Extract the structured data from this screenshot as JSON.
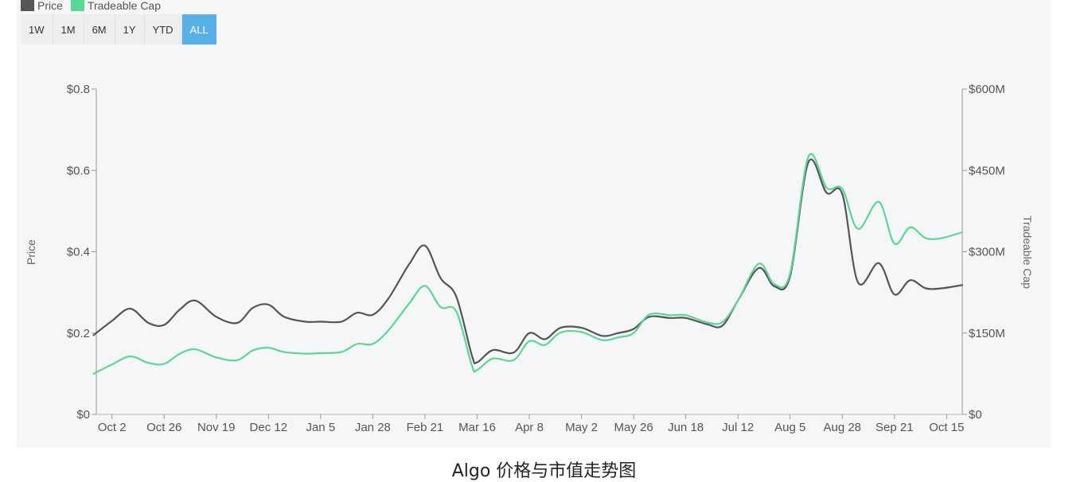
{
  "legend": [
    {
      "label": "Price",
      "color": "#555555"
    },
    {
      "label": "Tradeable Cap",
      "color": "#5cd694"
    }
  ],
  "range_buttons": [
    {
      "label": "1W",
      "active": false
    },
    {
      "label": "1M",
      "active": false
    },
    {
      "label": "6M",
      "active": false
    },
    {
      "label": "1Y",
      "active": false
    },
    {
      "label": "YTD",
      "active": false
    },
    {
      "label": "ALL",
      "active": true
    }
  ],
  "caption": "Algo 价格与市值走势图",
  "chart_data": {
    "type": "line",
    "title": "",
    "xlabel": "",
    "x_tick_labels": [
      "Oct 2",
      "Oct 26",
      "Nov 19",
      "Dec 12",
      "Jan 5",
      "Jan 28",
      "Feb 21",
      "Mar 16",
      "Apr 8",
      "May 2",
      "May 26",
      "Jun 18",
      "Jul 12",
      "Aug 5",
      "Aug 28",
      "Sep 21",
      "Oct 15"
    ],
    "y_left": {
      "label": "Price",
      "range": [
        0,
        0.8
      ],
      "tick_labels": [
        "$0",
        "$0.2",
        "$0.4",
        "$0.6",
        "$0.8"
      ],
      "ticks": [
        0,
        0.2,
        0.4,
        0.6,
        0.8
      ]
    },
    "y_right": {
      "label": "Tradeable Cap",
      "range": [
        0,
        600
      ],
      "unit": "M",
      "tick_labels": [
        "$0",
        "$150M",
        "$300M",
        "$450M",
        "$600M"
      ],
      "ticks": [
        0,
        150,
        300,
        450,
        600
      ]
    },
    "grid": false,
    "legend_position": "top-left",
    "x_domain": [
      -0.3,
      16.3
    ],
    "series": [
      {
        "name": "Price",
        "axis": "left",
        "color": "#555555",
        "x": [
          -0.35,
          0,
          0.35,
          0.7,
          1,
          1.3,
          1.6,
          2,
          2.4,
          2.7,
          3,
          3.3,
          3.7,
          4,
          4.4,
          4.7,
          5,
          5.3,
          5.7,
          6,
          6.3,
          6.6,
          6.9,
          7,
          7.3,
          7.7,
          8,
          8.3,
          8.6,
          9,
          9.4,
          9.7,
          10,
          10.3,
          10.7,
          11,
          11.4,
          11.7,
          12,
          12.4,
          12.7,
          13,
          13.35,
          13.7,
          14,
          14.3,
          14.7,
          15,
          15.3,
          15.6,
          15.9,
          16.3
        ],
        "y": [
          0.195,
          0.23,
          0.26,
          0.225,
          0.22,
          0.258,
          0.28,
          0.24,
          0.225,
          0.262,
          0.27,
          0.24,
          0.228,
          0.228,
          0.228,
          0.25,
          0.245,
          0.285,
          0.37,
          0.415,
          0.335,
          0.29,
          0.145,
          0.128,
          0.158,
          0.152,
          0.2,
          0.185,
          0.213,
          0.213,
          0.193,
          0.2,
          0.21,
          0.24,
          0.237,
          0.237,
          0.222,
          0.218,
          0.28,
          0.36,
          0.315,
          0.34,
          0.62,
          0.545,
          0.542,
          0.325,
          0.372,
          0.295,
          0.33,
          0.31,
          0.31,
          0.318
        ]
      },
      {
        "name": "Tradeable Cap",
        "axis": "right",
        "color": "#5cd694",
        "x": [
          -0.35,
          0,
          0.35,
          0.7,
          1,
          1.3,
          1.6,
          2,
          2.4,
          2.7,
          3,
          3.3,
          3.7,
          4,
          4.4,
          4.7,
          5,
          5.3,
          5.7,
          6,
          6.3,
          6.6,
          6.9,
          7,
          7.3,
          7.7,
          8,
          8.3,
          8.6,
          9,
          9.4,
          9.7,
          10,
          10.3,
          10.7,
          11,
          11.4,
          11.7,
          12,
          12.4,
          12.7,
          13,
          13.35,
          13.7,
          14,
          14.3,
          14.7,
          15,
          15.3,
          15.6,
          15.9,
          16.3
        ],
        "y": [
          75,
          92,
          107,
          95,
          93,
          112,
          120,
          105,
          100,
          118,
          123,
          115,
          112,
          113,
          115,
          130,
          130,
          155,
          205,
          237,
          198,
          190,
          90,
          82,
          103,
          100,
          135,
          128,
          151,
          152,
          137,
          142,
          150,
          184,
          183,
          183,
          170,
          170,
          210,
          278,
          240,
          260,
          475,
          418,
          416,
          342,
          392,
          315,
          345,
          325,
          325,
          336
        ]
      }
    ]
  }
}
